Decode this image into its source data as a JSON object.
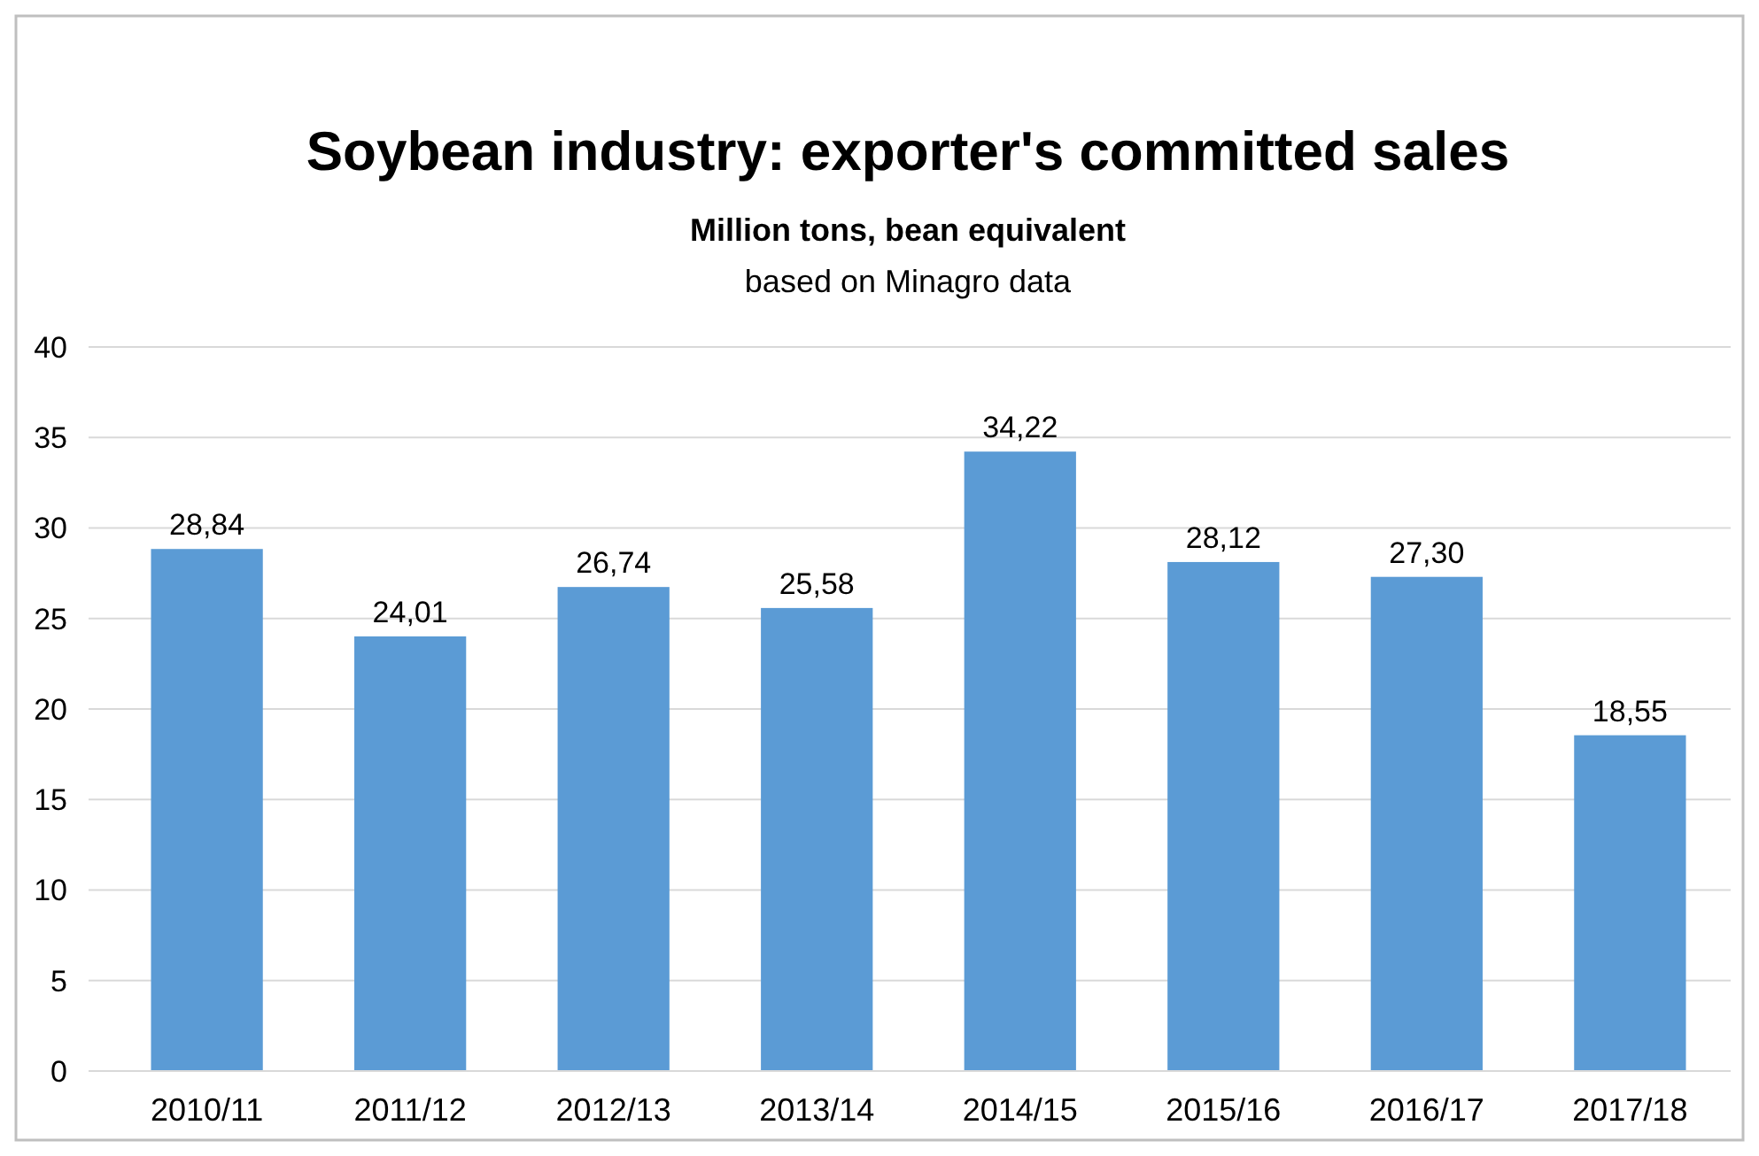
{
  "chart_data": {
    "type": "bar",
    "title": "Soybean industry: exporter's committed sales",
    "subtitle": "Million tons, bean equivalent",
    "annotations": [
      "based on Minagro data"
    ],
    "categories": [
      "2010/11",
      "2011/12",
      "2012/13",
      "2013/14",
      "2014/15",
      "2015/16",
      "2016/17",
      "2017/18"
    ],
    "values": [
      28.84,
      24.01,
      26.74,
      25.58,
      34.22,
      28.12,
      27.3,
      18.55
    ],
    "value_labels": [
      "28,84",
      "24,01",
      "26,74",
      "25,58",
      "34,22",
      "28,12",
      "27,30",
      "18,55"
    ],
    "color": "#5b9bd5",
    "ylim": [
      0,
      40
    ],
    "yticks": [
      0,
      5,
      10,
      15,
      20,
      25,
      30,
      35,
      40
    ],
    "grid": "y"
  }
}
